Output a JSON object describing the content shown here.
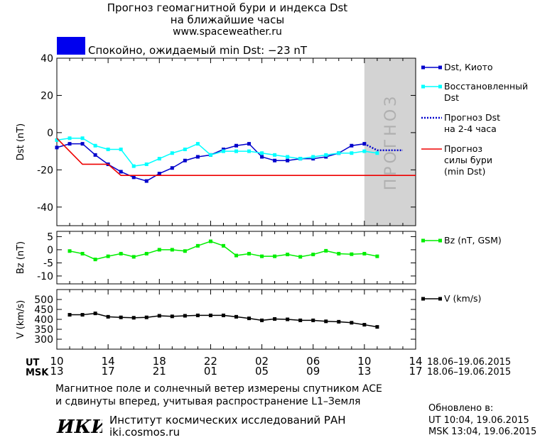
{
  "header": {
    "title_line1": "Прогноз геомагнитной бури и индекса Dst",
    "title_line2": "на ближайшие часы",
    "url": "www.spaceweather.ru"
  },
  "status": {
    "color": "#0000ee",
    "text": "Спокойно, ожидаемый min Dst: −23 nT"
  },
  "legend": {
    "dst_kyoto": "Dst, Киото",
    "dst_restored": "Восстановленный\nDst",
    "dst_forecast": "Прогноз Dst\nна 2-4 часа",
    "storm_forecast": "Прогноз\nсилы бури\n(min Dst)",
    "bz": "Bz (nT, GSM)",
    "v": "V (km/s)"
  },
  "forecast_band_label": "ПРОГНОЗ",
  "time_axis": {
    "ut_label": "UT",
    "msk_label": "MSK",
    "ut_ticks": [
      "10",
      "14",
      "18",
      "22",
      "02",
      "06",
      "10",
      "14"
    ],
    "msk_ticks": [
      "13",
      "17",
      "21",
      "01",
      "05",
      "09",
      "13",
      "17"
    ],
    "date_range": "18.06–19.06.2015"
  },
  "notes": {
    "line1": "Магнитное поле и солнечный ветер измерены спутником ACE",
    "line2": "и сдвинуты вперед, учитывая распространение L1–Земля"
  },
  "institute": {
    "logo_text": "ИКИ",
    "name": "Институт космических исследований РАН",
    "url": "iki.cosmos.ru"
  },
  "updated": {
    "label": "Обновлено в:",
    "ut": "UT   10:04, 19.06.2015",
    "msk": "MSK 13:04, 19.06.2015"
  },
  "chart_data": [
    {
      "type": "line",
      "ylabel": "Dst (nT)",
      "ylim": [
        -50,
        40
      ],
      "yticks": [
        "-40",
        "-20",
        "0",
        "20",
        "40"
      ],
      "xlim": [
        10,
        38
      ],
      "forecast_band": [
        34,
        38
      ],
      "series": [
        {
          "name": "Dst, Киото",
          "color": "#0000cc",
          "x": [
            10,
            11,
            12,
            13,
            14,
            15,
            16,
            17,
            18,
            19,
            20,
            21,
            22,
            23,
            24,
            25,
            26,
            27,
            28,
            29,
            30,
            31,
            32,
            33,
            34
          ],
          "y": [
            -8,
            -6,
            -6,
            -12,
            -17,
            -21,
            -24,
            -26,
            -22,
            -19,
            -15,
            -13,
            -12,
            -9,
            -7,
            -6,
            -13,
            -15,
            -15,
            -14,
            -14,
            -13,
            -11,
            -7,
            -6
          ]
        },
        {
          "name": "Восстановленный Dst",
          "color": "#00ffff",
          "x": [
            10,
            11,
            12,
            13,
            14,
            15,
            16,
            17,
            18,
            19,
            20,
            21,
            22,
            23,
            24,
            25,
            26,
            27,
            28,
            29,
            30,
            31,
            32,
            33,
            34,
            35
          ],
          "y": [
            -4,
            -3,
            -3,
            -7,
            -9,
            -9,
            -18,
            -17,
            -14,
            -11,
            -9,
            -6,
            -12,
            -10,
            -10,
            -10,
            -11,
            -12,
            -13,
            -14,
            -13,
            -12,
            -11,
            -11,
            -10,
            -11
          ]
        },
        {
          "name": "Прогноз Dst на 2-4 часа",
          "color": "#0000cc",
          "style": "dotted",
          "x": [
            34,
            35,
            36,
            37
          ],
          "y": [
            -6,
            -9.5,
            -9.5,
            -9.5
          ]
        },
        {
          "name": "Прогноз силы бури (min Dst)",
          "color": "#ee0000",
          "x": [
            10,
            12,
            14,
            15,
            38
          ],
          "y": [
            -3,
            -17,
            -17,
            -23,
            -23
          ]
        }
      ]
    },
    {
      "type": "line",
      "ylabel": "Bz (nT)",
      "ylim": [
        -13,
        7
      ],
      "yticks": [
        "-10",
        "-5",
        "0",
        "5"
      ],
      "xlim": [
        10,
        38
      ],
      "series": [
        {
          "name": "Bz (nT, GSM)",
          "color": "#00ee00",
          "x": [
            11,
            12,
            13,
            14,
            15,
            16,
            17,
            18,
            19,
            20,
            21,
            22,
            23,
            24,
            25,
            26,
            27,
            28,
            29,
            30,
            31,
            32,
            33,
            34,
            35
          ],
          "y": [
            -0.5,
            -1.5,
            -3.7,
            -2.5,
            -1.5,
            -2.7,
            -1.5,
            0,
            0,
            -0.5,
            1.5,
            3.2,
            1.5,
            -2.2,
            -1.5,
            -2.5,
            -2.5,
            -1.8,
            -2.7,
            -1.8,
            -0.4,
            -1.5,
            -1.7,
            -1.5,
            -2.5
          ]
        }
      ]
    },
    {
      "type": "line",
      "ylabel": "V (km/s)",
      "ylim": [
        250,
        550
      ],
      "yticks": [
        "300",
        "350",
        "400",
        "450",
        "500"
      ],
      "xlim": [
        10,
        38
      ],
      "series": [
        {
          "name": "V (km/s)",
          "color": "#000000",
          "x": [
            11,
            12,
            13,
            14,
            15,
            16,
            17,
            18,
            19,
            20,
            21,
            22,
            23,
            24,
            25,
            26,
            27,
            28,
            29,
            30,
            31,
            32,
            33,
            34,
            35
          ],
          "y": [
            423,
            423,
            430,
            413,
            410,
            408,
            410,
            418,
            415,
            418,
            420,
            420,
            420,
            413,
            405,
            395,
            402,
            400,
            395,
            395,
            390,
            388,
            383,
            373,
            362
          ]
        }
      ]
    }
  ]
}
